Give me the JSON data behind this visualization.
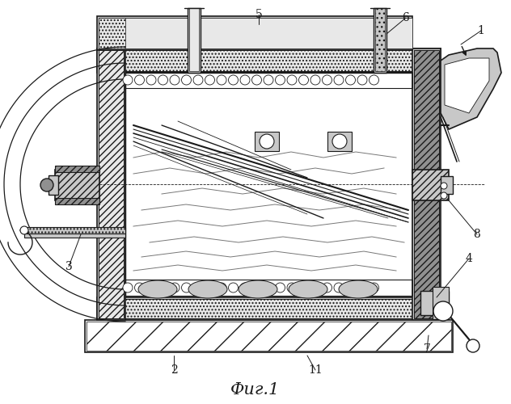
{
  "title": "Фиг.1",
  "title_fontsize": 15,
  "background_color": "#ffffff",
  "lc": "#1a1a1a",
  "gray_light": "#e8e8e8",
  "gray_med": "#c8c8c8",
  "gray_dark": "#909090",
  "gray_darker": "#606060",
  "white": "#ffffff",
  "label_fs": 10
}
